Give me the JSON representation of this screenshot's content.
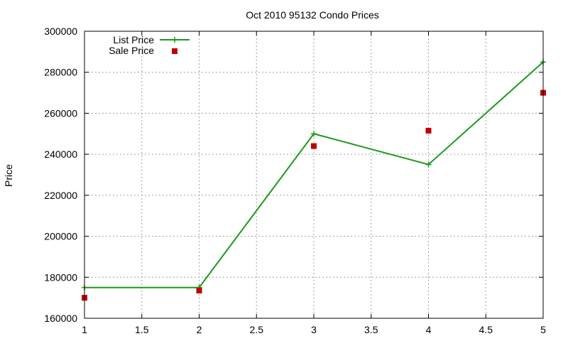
{
  "chart_data": {
    "type": "line",
    "title": "Oct 2010 95132 Condo Prices",
    "xlabel": "",
    "ylabel": "Price",
    "xlim": [
      1,
      5
    ],
    "ylim": [
      160000,
      300000
    ],
    "x_ticks": [
      "1",
      "1.5",
      "2",
      "2.5",
      "3",
      "3.5",
      "4",
      "4.5",
      "5"
    ],
    "y_ticks": [
      "160000",
      "180000",
      "200000",
      "220000",
      "240000",
      "260000",
      "280000",
      "300000"
    ],
    "grid": true,
    "legend_position": "top-left",
    "series": [
      {
        "name": "List Price",
        "style": "line with plus markers",
        "color": "#1a9a1a",
        "x": [
          1,
          2,
          3,
          4,
          5
        ],
        "y": [
          175000,
          175000,
          250000,
          235000,
          285000
        ]
      },
      {
        "name": "Sale Price",
        "style": "square points",
        "color": "#c00000",
        "x": [
          1,
          2,
          3,
          4,
          5
        ],
        "y": [
          170000,
          173500,
          244000,
          251500,
          270000
        ]
      }
    ]
  }
}
